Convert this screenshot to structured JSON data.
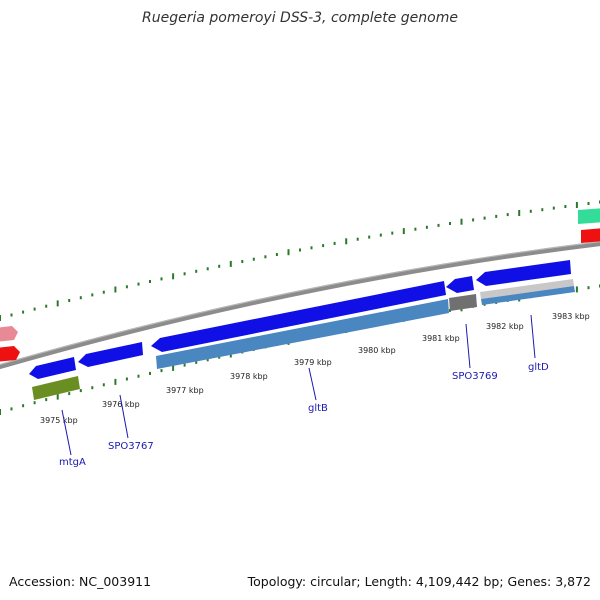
{
  "title": "Ruegeria pomeroyi DSS-3, complete genome",
  "footer": {
    "accession": "Accession: NC_003911",
    "summary": "Topology: circular; Length: 4,109,442 bp; Genes: 3,872"
  },
  "scale_labels": [
    "3975 kbp",
    "3976 kbp",
    "3977 kbp",
    "3978 kbp",
    "3979 kbp",
    "3980 kbp",
    "3981 kbp",
    "3982 kbp",
    "3983 kbp"
  ],
  "gene_labels": [
    "mtgA",
    "SPO3767",
    "gltB",
    "SPO3769",
    "gltD"
  ],
  "colors": {
    "cds_blue": "#1010e6",
    "gene_steelblue": "#4a86c0",
    "mtgA_green": "#6b8e23",
    "gray_feature": "#707070",
    "backbone": "#8c8c8c",
    "tick_green": "#2a7a2a",
    "label_blue": "#1a1ab0"
  }
}
